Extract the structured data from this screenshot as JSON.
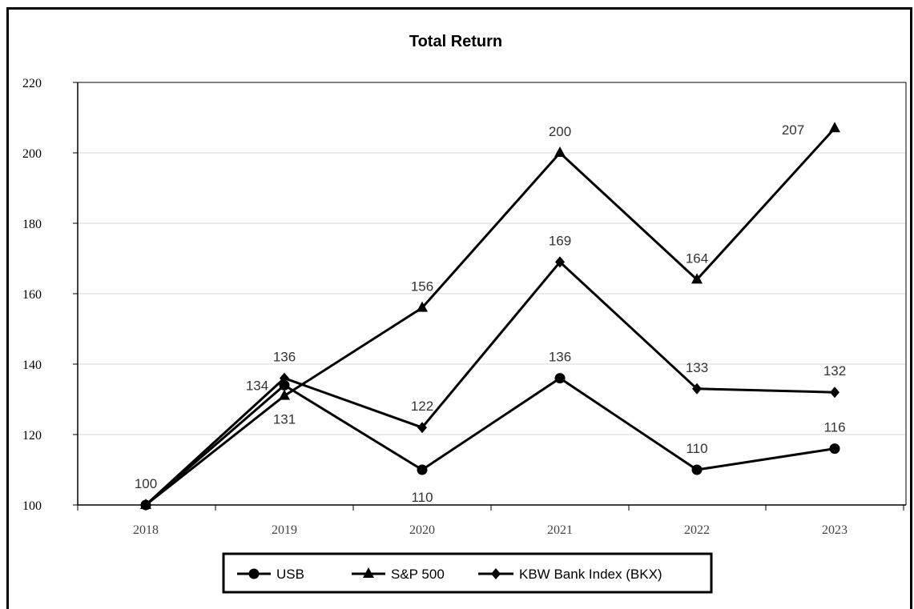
{
  "chart_data": {
    "type": "line",
    "title": "Total Return",
    "xlabel": "",
    "ylabel": "",
    "categories": [
      "2018",
      "2019",
      "2020",
      "2021",
      "2022",
      "2023"
    ],
    "ylim": [
      100,
      220
    ],
    "yticks": [
      100,
      120,
      140,
      160,
      180,
      200,
      220
    ],
    "grid": true,
    "legend_position": "bottom",
    "series": [
      {
        "name": "USB",
        "marker": "circle",
        "values": [
          100,
          134,
          110,
          136,
          110,
          116
        ],
        "labels": [
          "100",
          "134",
          "110",
          "136",
          "110",
          "116"
        ]
      },
      {
        "name": "S&P 500",
        "marker": "triangle",
        "values": [
          100,
          131,
          156,
          200,
          164,
          207
        ],
        "labels": [
          "",
          "131",
          "156",
          "200",
          "164",
          "207"
        ]
      },
      {
        "name": "KBW Bank Index (BKX)",
        "marker": "diamond",
        "values": [
          100,
          136,
          122,
          169,
          133,
          132
        ],
        "labels": [
          "",
          "136",
          "122",
          "169",
          "133",
          "132"
        ]
      }
    ],
    "colors": {
      "line": "#000000",
      "grid": "#d9d9d9",
      "label": "#333333"
    }
  }
}
